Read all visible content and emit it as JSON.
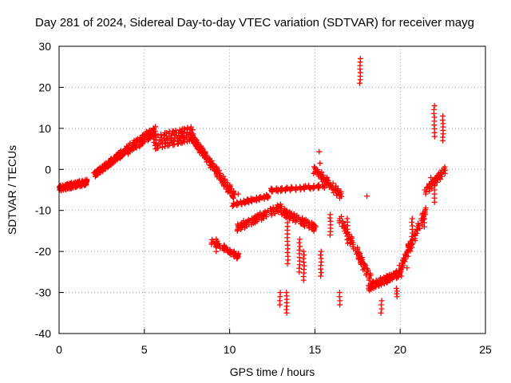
{
  "chart_data": {
    "type": "scatter",
    "title": "Day 281 of 2024, Sidereal Day-to-day VTEC variation (SDTVAR) for receiver mayg",
    "xlabel": "GPS time / hours",
    "ylabel": "SDTVAR / TECUs",
    "xlim": [
      0,
      25
    ],
    "ylim": [
      -40,
      30
    ],
    "xticks": [
      "0",
      "5",
      "10",
      "15",
      "20",
      "25"
    ],
    "yticks": [
      "-40",
      "-30",
      "-20",
      "-10",
      "0",
      "10",
      "20",
      "30"
    ],
    "grid": true,
    "marker": "plus",
    "color": "#ff0000",
    "series": [
      {
        "name": "SDTVAR",
        "segments": [
          {
            "x0": 0.0,
            "x1": 1.6,
            "y0": -4.5,
            "y1": -3.0,
            "n": 20,
            "spread": 1.5
          },
          {
            "x0": 2.1,
            "x1": 4.0,
            "y0": -1.0,
            "y1": 5.0,
            "n": 20,
            "spread": 1.5
          },
          {
            "x0": 4.0,
            "x1": 5.6,
            "y0": 5.0,
            "y1": 9.5,
            "n": 16,
            "spread": 2.5
          },
          {
            "x0": 5.6,
            "x1": 7.8,
            "y0": 7.0,
            "y1": 9.0,
            "n": 18,
            "spread": 4.0
          },
          {
            "x0": 7.8,
            "x1": 10.2,
            "y0": 8.0,
            "y1": -6.0,
            "n": 20,
            "spread": 2.0
          },
          {
            "x0": 10.2,
            "x1": 12.2,
            "y0": -8.5,
            "y1": -6.5,
            "n": 10,
            "spread": 1.0
          },
          {
            "x0": 9.0,
            "x1": 10.5,
            "y0": -17.5,
            "y1": -21.0,
            "n": 8,
            "spread": 1.5
          },
          {
            "x0": 10.5,
            "x1": 13.0,
            "y0": -14.0,
            "y1": -9.0,
            "n": 14,
            "spread": 2.0
          },
          {
            "x0": 12.5,
            "x1": 15.5,
            "y0": -5.0,
            "y1": -4.0,
            "n": 12,
            "spread": 1.0
          },
          {
            "x0": 13.0,
            "x1": 15.0,
            "y0": -10.0,
            "y1": -14.0,
            "n": 12,
            "spread": 2.0
          },
          {
            "x0": 15.0,
            "x1": 16.5,
            "y0": 0.0,
            "y1": -6.0,
            "n": 10,
            "spread": 2.0
          },
          {
            "x0": 16.5,
            "x1": 18.2,
            "y0": -12.0,
            "y1": -26.0,
            "n": 12,
            "spread": 2.0
          },
          {
            "x0": 18.2,
            "x1": 20.0,
            "y0": -28.5,
            "y1": -25.0,
            "n": 14,
            "spread": 2.0
          },
          {
            "x0": 20.0,
            "x1": 21.5,
            "y0": -24.0,
            "y1": -10.0,
            "n": 12,
            "spread": 2.0
          },
          {
            "x0": 21.5,
            "x1": 22.6,
            "y0": -5.0,
            "y1": 0.0,
            "n": 8,
            "spread": 2.0
          }
        ],
        "columns": [
          {
            "x": 13.35,
            "y0": -35.0,
            "y1": -30.0
          },
          {
            "x": 12.95,
            "y0": -33.0,
            "y1": -30.0
          },
          {
            "x": 14.35,
            "y0": -27.0,
            "y1": -20.0
          },
          {
            "x": 15.35,
            "y0": -26.0,
            "y1": -20.0
          },
          {
            "x": 14.1,
            "y0": -25.0,
            "y1": -17.0
          },
          {
            "x": 16.45,
            "y0": -33.0,
            "y1": -30.0
          },
          {
            "x": 18.9,
            "y0": -35.0,
            "y1": -32.0
          },
          {
            "x": 17.65,
            "y0": 21.0,
            "y1": 27.0
          },
          {
            "x": 22.0,
            "y0": 8.0,
            "y1": 15.5
          },
          {
            "x": 22.0,
            "y0": -8.0,
            "y1": -4.0
          },
          {
            "x": 22.5,
            "y0": 7.0,
            "y1": 12.0
          },
          {
            "x": 21.4,
            "y0": -14.0,
            "y1": -11.0
          },
          {
            "x": 20.7,
            "y0": -19.0,
            "y1": -12.0
          },
          {
            "x": 19.8,
            "y0": -31.0,
            "y1": -29.0
          },
          {
            "x": 13.4,
            "y0": -23.0,
            "y1": -13.0
          },
          {
            "x": 15.9,
            "y0": -16.0,
            "y1": -11.0
          },
          {
            "x": 16.9,
            "y0": -18.0,
            "y1": -12.0
          },
          {
            "x": 9.2,
            "y0": -20.0,
            "y1": -17.0
          }
        ],
        "points": [
          [
            18.05,
            -6.5
          ],
          [
            10.5,
            -6.0
          ],
          [
            15.25,
            4.3
          ],
          [
            15.3,
            1.5
          ],
          [
            11.5,
            -13.0
          ],
          [
            18.3,
            -28.0
          ],
          [
            22.5,
            13.0
          ],
          [
            21.7,
            -3.5
          ],
          [
            21.8,
            -2.0
          ],
          [
            20.4,
            -24.0
          ]
        ]
      }
    ]
  }
}
